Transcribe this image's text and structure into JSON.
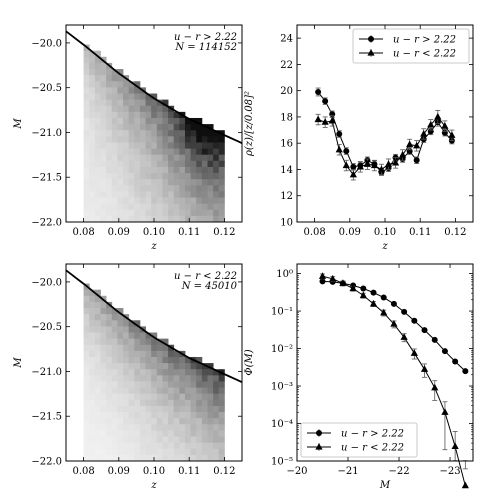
{
  "chart_data": [
    {
      "id": "hist_red",
      "type": "heatmap",
      "xlabel": "z",
      "ylabel": "M",
      "xlim": [
        0.075,
        0.125
      ],
      "ylim": [
        -22.0,
        -19.8
      ],
      "y_inverted": true,
      "xticks": [
        0.08,
        0.09,
        0.1,
        0.11,
        0.12
      ],
      "xtick_labels": [
        "0.08",
        "0.09",
        "0.10",
        "0.11",
        "0.12"
      ],
      "yticks": [
        -20.0,
        -20.5,
        -21.0,
        -21.5,
        -22.0
      ],
      "ytick_labels": [
        "−20.0",
        "−20.5",
        "−21.0",
        "−21.5",
        "−22.0"
      ],
      "annotation": [
        "u − r > 2.22",
        "N = 114152"
      ],
      "limit_curve": {
        "x": [
          0.075,
          0.08,
          0.09,
          0.1,
          0.11,
          0.125
        ],
        "y": [
          -19.87,
          -20.02,
          -20.34,
          -20.62,
          -20.85,
          -21.12
        ]
      },
      "grid": {
        "x_start": 0.08,
        "x_end": 0.12,
        "y_start": -19.95,
        "y_end": -22.0,
        "cols": 25,
        "rows": 30
      },
      "density": {
        "base": 0.06,
        "z_gain": 0.55,
        "edge_peak": 0.35,
        "edge_width": 0.45,
        "corner_x": 0.113,
        "corner_gain": 0.45
      }
    },
    {
      "id": "rho_z",
      "type": "line",
      "xlabel": "z",
      "ylabel": "ρ(z)/[z/0.08]²",
      "xlim": [
        0.075,
        0.125
      ],
      "ylim": [
        10,
        25
      ],
      "xticks": [
        0.08,
        0.09,
        0.1,
        0.11,
        0.12
      ],
      "xtick_labels": [
        "0.08",
        "0.09",
        "0.10",
        "0.11",
        "0.12"
      ],
      "yticks": [
        10,
        12,
        14,
        16,
        18,
        20,
        22,
        24
      ],
      "ytick_labels": [
        "10",
        "12",
        "14",
        "16",
        "18",
        "20",
        "22",
        "24"
      ],
      "legend_position": "top-right",
      "series": [
        {
          "name": "u − r > 2.22",
          "marker": "circle",
          "x": [
            0.081,
            0.083,
            0.085,
            0.087,
            0.089,
            0.091,
            0.093,
            0.095,
            0.097,
            0.099,
            0.101,
            0.103,
            0.105,
            0.107,
            0.109,
            0.111,
            0.113,
            0.115,
            0.117,
            0.119
          ],
          "y": [
            19.9,
            19.2,
            18.2,
            16.7,
            15.4,
            14.2,
            14.3,
            14.7,
            14.4,
            13.8,
            14.1,
            14.9,
            14.8,
            15.4,
            14.7,
            16.3,
            16.9,
            17.6,
            16.8,
            16.2
          ],
          "err": [
            0.3,
            0.25,
            0.25,
            0.25,
            0.25,
            0.25,
            0.25,
            0.25,
            0.25,
            0.25,
            0.25,
            0.25,
            0.25,
            0.25,
            0.25,
            0.25,
            0.25,
            0.3,
            0.25,
            0.25
          ]
        },
        {
          "name": "u − r < 2.22",
          "marker": "triangle",
          "x": [
            0.081,
            0.083,
            0.085,
            0.087,
            0.089,
            0.091,
            0.093,
            0.095,
            0.097,
            0.099,
            0.101,
            0.103,
            0.105,
            0.107,
            0.109,
            0.111,
            0.113,
            0.115,
            0.117,
            0.119
          ],
          "y": [
            17.8,
            17.6,
            17.7,
            15.5,
            14.3,
            13.6,
            14.2,
            14.4,
            14.3,
            14.0,
            14.4,
            14.5,
            15.1,
            15.9,
            15.8,
            16.7,
            17.4,
            18.0,
            17.3,
            16.6
          ],
          "err": [
            0.4,
            0.4,
            0.4,
            0.4,
            0.4,
            0.4,
            0.4,
            0.4,
            0.4,
            0.4,
            0.4,
            0.4,
            0.4,
            0.4,
            0.4,
            0.4,
            0.4,
            0.5,
            0.4,
            0.4
          ]
        }
      ]
    },
    {
      "id": "hist_blue",
      "type": "heatmap",
      "xlabel": "z",
      "ylabel": "M",
      "xlim": [
        0.075,
        0.125
      ],
      "ylim": [
        -22.0,
        -19.8
      ],
      "y_inverted": true,
      "xticks": [
        0.08,
        0.09,
        0.1,
        0.11,
        0.12
      ],
      "xtick_labels": [
        "0.08",
        "0.09",
        "0.10",
        "0.11",
        "0.12"
      ],
      "yticks": [
        -20.0,
        -20.5,
        -21.0,
        -21.5,
        -22.0
      ],
      "ytick_labels": [
        "−20.0",
        "−20.5",
        "−21.0",
        "−21.5",
        "−22.0"
      ],
      "annotation": [
        "u − r < 2.22",
        "N = 45010"
      ],
      "limit_curve": {
        "x": [
          0.075,
          0.08,
          0.09,
          0.1,
          0.11,
          0.125
        ],
        "y": [
          -19.87,
          -20.02,
          -20.34,
          -20.62,
          -20.85,
          -21.12
        ]
      },
      "grid": {
        "x_start": 0.08,
        "x_end": 0.12,
        "y_start": -19.95,
        "y_end": -22.0,
        "cols": 25,
        "rows": 30
      },
      "density": {
        "base": 0.03,
        "z_gain": 0.25,
        "edge_peak": 0.55,
        "edge_width": 0.5,
        "corner_x": 0.2,
        "corner_gain": 0.0
      }
    },
    {
      "id": "lum_func",
      "type": "line",
      "xlabel": "M",
      "ylabel": "Φ(M)",
      "xlim": [
        -20.0,
        -23.45
      ],
      "ylim": [
        1e-05,
        1.8
      ],
      "x_inverted": true,
      "yscale": "log",
      "xticks": [
        -20,
        -21,
        -22,
        -23
      ],
      "xtick_labels": [
        "−20",
        "−21",
        "−22",
        "−23"
      ],
      "yticks": [
        1e-05,
        0.0001,
        0.001,
        0.01,
        0.1,
        1
      ],
      "ytick_labels": [
        "10⁻⁵",
        "10⁻⁴",
        "10⁻³",
        "10⁻²",
        "10⁻¹",
        "10⁰"
      ],
      "legend_position": "bottom-left",
      "series": [
        {
          "name": "u − r > 2.22",
          "marker": "circle",
          "x": [
            -20.5,
            -20.7,
            -20.9,
            -21.1,
            -21.3,
            -21.5,
            -21.7,
            -21.9,
            -22.1,
            -22.3,
            -22.5,
            -22.7,
            -22.9,
            -23.1,
            -23.3
          ],
          "y": [
            0.62,
            0.6,
            0.55,
            0.48,
            0.4,
            0.31,
            0.23,
            0.155,
            0.095,
            0.055,
            0.031,
            0.017,
            0.0085,
            0.0045,
            0.0025
          ]
        },
        {
          "name": "u − r < 2.22",
          "marker": "triangle",
          "x": [
            -20.5,
            -20.7,
            -20.9,
            -21.1,
            -21.3,
            -21.5,
            -21.7,
            -21.9,
            -22.1,
            -22.3,
            -22.5,
            -22.7,
            -22.9,
            -23.1,
            -23.3
          ],
          "y": [
            0.85,
            0.72,
            0.55,
            0.4,
            0.26,
            0.155,
            0.09,
            0.045,
            0.02,
            0.0075,
            0.0028,
            0.0009,
            0.0002,
            2.45e-05,
            2.2e-06
          ],
          "err_rel": [
            0.05,
            0.05,
            0.05,
            0.05,
            0.05,
            0.05,
            0.06,
            0.07,
            0.08,
            0.1,
            0.13,
            0.18,
            0.3,
            0.5,
            0.6
          ]
        }
      ]
    }
  ]
}
